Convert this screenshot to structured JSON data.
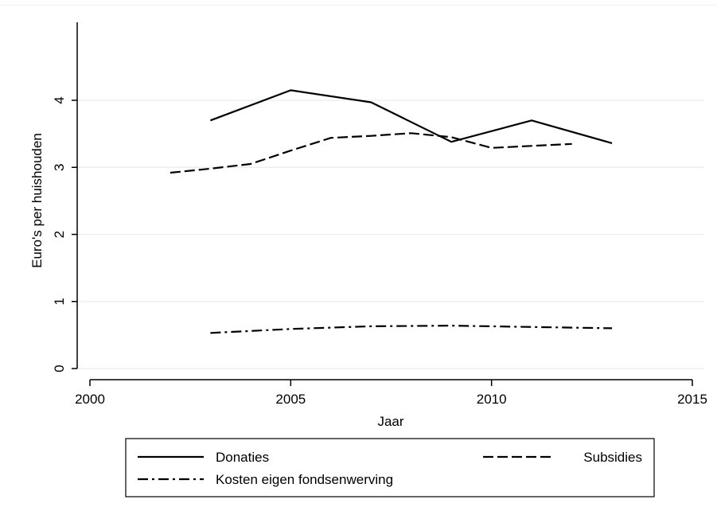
{
  "chart_data": {
    "type": "line",
    "title": "",
    "xlabel": "Jaar",
    "ylabel": "Euro's per huishouden",
    "xlim": [
      2000,
      2015
    ],
    "ylim": [
      0,
      5
    ],
    "xticks": [
      2000,
      2005,
      2010,
      2015
    ],
    "yticks": [
      0,
      1,
      2,
      3,
      4
    ],
    "grid": true,
    "legend_position": "bottom",
    "series": [
      {
        "name": "Donaties",
        "style": "solid",
        "x": [
          2003,
          2005,
          2007,
          2009,
          2011,
          2013
        ],
        "values": [
          3.7,
          4.15,
          3.97,
          3.38,
          3.7,
          3.36
        ]
      },
      {
        "name": "Subsidies",
        "style": "dashed",
        "x": [
          2002,
          2003,
          2004,
          2005,
          2006,
          2007,
          2008,
          2009,
          2010,
          2011,
          2012
        ],
        "values": [
          2.92,
          2.98,
          3.05,
          3.25,
          3.44,
          3.47,
          3.51,
          3.45,
          3.29,
          3.32,
          3.35
        ]
      },
      {
        "name": "Kosten eigen fondsenwerving",
        "style": "dashdot",
        "x": [
          2003,
          2005,
          2007,
          2009,
          2011,
          2013
        ],
        "values": [
          0.53,
          0.59,
          0.63,
          0.64,
          0.62,
          0.6
        ]
      }
    ]
  }
}
